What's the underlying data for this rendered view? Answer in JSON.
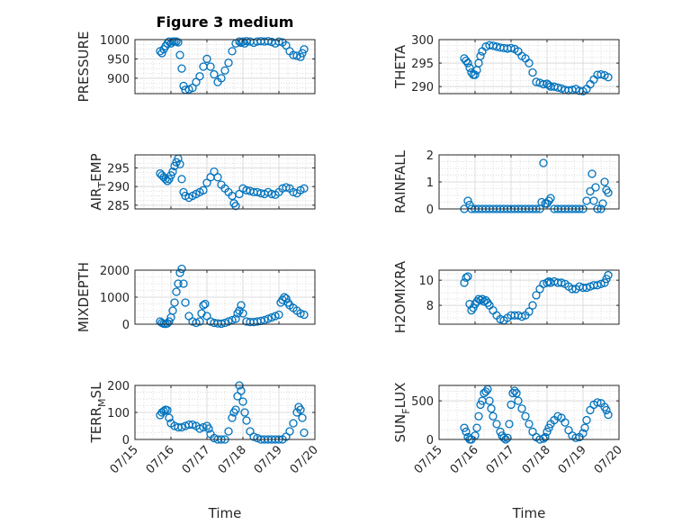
{
  "figure_title": "Figure 3 medium",
  "colors": {
    "marker": "#0072BD",
    "axis": "#262626",
    "grid": "#DCDCDC"
  },
  "chart_data": [
    {
      "type": "scatter",
      "title": "Figure 3 medium",
      "ylabel": "PRESSURE",
      "ylabel_parts": [
        {
          "t": "PRESSURE",
          "s": false
        }
      ],
      "xlabel": "",
      "xlim": [
        0,
        5
      ],
      "ylim": [
        860,
        1000
      ],
      "yticks": [
        900,
        950,
        1000
      ],
      "ytick_labels": [
        "900",
        "950",
        "1000"
      ],
      "xticks": [
        0,
        1,
        2,
        3,
        4,
        5
      ],
      "xtick_labels": [
        "07/15",
        "07/16",
        "07/17",
        "07/18",
        "07/19",
        "07/20"
      ],
      "show_xtick_labels": false,
      "grid": true,
      "points": {
        "x": [
          0.7,
          0.75,
          0.8,
          0.85,
          0.9,
          0.95,
          1.0,
          1.05,
          1.1,
          1.15,
          1.2,
          1.25,
          1.3,
          1.35,
          1.4,
          1.5,
          1.6,
          1.7,
          1.8,
          1.9,
          2.0,
          2.1,
          2.2,
          2.3,
          2.4,
          2.5,
          2.6,
          2.7,
          2.8,
          2.9,
          2.95,
          3.0,
          3.05,
          3.1,
          3.2,
          3.3,
          3.4,
          3.5,
          3.6,
          3.7,
          3.8,
          3.9,
          4.0,
          4.1,
          4.2,
          4.3,
          4.4,
          4.5,
          4.6,
          4.65,
          4.7
        ],
        "y": [
          970,
          965,
          975,
          983,
          990,
          995,
          990,
          995,
          995,
          995,
          993,
          960,
          925,
          880,
          870,
          871,
          875,
          890,
          905,
          930,
          950,
          930,
          910,
          890,
          900,
          920,
          940,
          970,
          990,
          995,
          992,
          995,
          990,
          996,
          995,
          992,
          995,
          996,
          995,
          996,
          994,
          990,
          995,
          993,
          985,
          970,
          960,
          958,
          955,
          965,
          975
        ]
      }
    },
    {
      "type": "scatter",
      "ylabel": "THETA",
      "ylabel_parts": [
        {
          "t": "THETA",
          "s": false
        }
      ],
      "xlabel": "",
      "xlim": [
        0,
        5
      ],
      "ylim": [
        288.5,
        300
      ],
      "yticks": [
        290,
        295,
        300
      ],
      "ytick_labels": [
        "290",
        "295",
        "300"
      ],
      "xticks": [
        0,
        1,
        2,
        3,
        4,
        5
      ],
      "xtick_labels": [
        "07/15",
        "07/16",
        "07/17",
        "07/18",
        "07/19",
        "07/20"
      ],
      "show_xtick_labels": false,
      "grid": true,
      "points": {
        "x": [
          0.7,
          0.75,
          0.8,
          0.85,
          0.9,
          0.95,
          1.0,
          1.05,
          1.1,
          1.15,
          1.2,
          1.3,
          1.4,
          1.5,
          1.6,
          1.7,
          1.8,
          1.9,
          2.0,
          2.1,
          2.2,
          2.3,
          2.4,
          2.5,
          2.6,
          2.7,
          2.8,
          2.9,
          3.0,
          3.05,
          3.1,
          3.2,
          3.3,
          3.4,
          3.5,
          3.6,
          3.7,
          3.8,
          3.9,
          4.0,
          4.1,
          4.2,
          4.3,
          4.4,
          4.5,
          4.6,
          4.7
        ],
        "y": [
          296,
          295.5,
          295,
          294,
          293,
          292.5,
          292.5,
          293.5,
          295,
          296.5,
          297.5,
          298.5,
          298.8,
          298.7,
          298.5,
          298.3,
          298.2,
          298.1,
          298.2,
          298,
          297.5,
          296.5,
          296,
          295,
          293,
          291,
          290.8,
          290.5,
          290.6,
          290.3,
          290,
          290,
          289.8,
          289.6,
          289.3,
          289.2,
          289.3,
          289.5,
          289.1,
          289,
          289.5,
          290.5,
          291.5,
          292.5,
          292.6,
          292.4,
          292
        ]
      }
    },
    {
      "type": "scatter",
      "ylabel": "AIR_TEMP",
      "ylabel_parts": [
        {
          "t": "AIR",
          "s": false
        },
        {
          "t": "T",
          "s": true
        },
        {
          "t": "EMP",
          "s": false
        }
      ],
      "xlabel": "",
      "xlim": [
        0,
        5
      ],
      "ylim": [
        284,
        298.5
      ],
      "yticks": [
        285,
        290,
        295
      ],
      "ytick_labels": [
        "285",
        "290",
        "295"
      ],
      "xticks": [
        0,
        1,
        2,
        3,
        4,
        5
      ],
      "xtick_labels": [
        "07/15",
        "07/16",
        "07/17",
        "07/18",
        "07/19",
        "07/20"
      ],
      "show_xtick_labels": false,
      "grid": true,
      "points": {
        "x": [
          0.7,
          0.75,
          0.8,
          0.85,
          0.9,
          0.95,
          1.0,
          1.05,
          1.1,
          1.15,
          1.2,
          1.25,
          1.3,
          1.35,
          1.4,
          1.5,
          1.6,
          1.7,
          1.8,
          1.9,
          2.0,
          2.1,
          2.2,
          2.3,
          2.4,
          2.5,
          2.6,
          2.7,
          2.75,
          2.8,
          2.9,
          3.0,
          3.1,
          3.2,
          3.3,
          3.4,
          3.5,
          3.6,
          3.7,
          3.8,
          3.9,
          4.0,
          4.1,
          4.2,
          4.3,
          4.4,
          4.5,
          4.6,
          4.7
        ],
        "y": [
          293.5,
          293,
          292.5,
          292,
          291.5,
          292,
          293,
          294,
          295.5,
          296.5,
          297.5,
          296,
          292,
          288.5,
          287.5,
          287,
          287.5,
          288,
          288.5,
          289,
          291,
          292.5,
          294,
          292.5,
          290.5,
          289.5,
          288.5,
          287.5,
          285.5,
          284.8,
          288,
          289.5,
          289,
          288.8,
          288.5,
          288.5,
          288.2,
          288,
          288.5,
          288,
          287.8,
          288.5,
          289.5,
          289.8,
          289.5,
          288.5,
          288.2,
          289,
          289.5
        ]
      }
    },
    {
      "type": "scatter",
      "ylabel": "RAINFALL",
      "ylabel_parts": [
        {
          "t": "RAINFALL",
          "s": false
        }
      ],
      "xlabel": "",
      "xlim": [
        0,
        5
      ],
      "ylim": [
        0,
        2
      ],
      "yticks": [
        0,
        1,
        2
      ],
      "ytick_labels": [
        "0",
        "1",
        "2"
      ],
      "xticks": [
        0,
        1,
        2,
        3,
        4,
        5
      ],
      "xtick_labels": [
        "07/15",
        "07/16",
        "07/17",
        "07/18",
        "07/19",
        "07/20"
      ],
      "show_xtick_labels": false,
      "grid": true,
      "points": {
        "x": [
          0.7,
          0.8,
          0.85,
          0.9,
          1.0,
          1.1,
          1.2,
          1.3,
          1.4,
          1.5,
          1.6,
          1.7,
          1.8,
          1.9,
          2.0,
          2.1,
          2.2,
          2.3,
          2.4,
          2.5,
          2.6,
          2.7,
          2.8,
          2.85,
          2.9,
          2.95,
          3.0,
          3.05,
          3.1,
          3.2,
          3.3,
          3.4,
          3.5,
          3.6,
          3.7,
          3.8,
          3.9,
          4.0,
          4.1,
          4.2,
          4.25,
          4.3,
          4.35,
          4.4,
          4.5,
          4.55,
          4.6,
          4.65,
          4.7
        ],
        "y": [
          0,
          0.3,
          0.15,
          0,
          0,
          0,
          0,
          0,
          0,
          0,
          0,
          0,
          0,
          0,
          0,
          0,
          0,
          0,
          0,
          0,
          0,
          0,
          0,
          0.25,
          1.7,
          0.2,
          0.2,
          0.3,
          0.4,
          0,
          0,
          0,
          0,
          0,
          0,
          0,
          0,
          0,
          0.3,
          0.65,
          1.3,
          0.3,
          0.8,
          0,
          0,
          0.2,
          1.0,
          0.7,
          0.6
        ]
      }
    },
    {
      "type": "scatter",
      "ylabel": "MIXDEPTH",
      "ylabel_parts": [
        {
          "t": "MIXDEPTH",
          "s": false
        }
      ],
      "xlabel": "",
      "xlim": [
        0,
        5
      ],
      "ylim": [
        0,
        2000
      ],
      "yticks": [
        0,
        1000,
        2000
      ],
      "ytick_labels": [
        "0",
        "1000",
        "2000"
      ],
      "xticks": [
        0,
        1,
        2,
        3,
        4,
        5
      ],
      "xtick_labels": [
        "07/15",
        "07/16",
        "07/17",
        "07/18",
        "07/19",
        "07/20"
      ],
      "show_xtick_labels": false,
      "grid": true,
      "points": {
        "x": [
          0.7,
          0.75,
          0.8,
          0.85,
          0.9,
          0.95,
          1.0,
          1.05,
          1.1,
          1.15,
          1.2,
          1.25,
          1.3,
          1.35,
          1.4,
          1.5,
          1.6,
          1.7,
          1.8,
          1.85,
          1.9,
          1.95,
          2.0,
          2.1,
          2.2,
          2.3,
          2.4,
          2.5,
          2.6,
          2.7,
          2.8,
          2.85,
          2.9,
          2.95,
          3.0,
          3.1,
          3.2,
          3.3,
          3.4,
          3.5,
          3.6,
          3.7,
          3.8,
          3.9,
          4.0,
          4.05,
          4.1,
          4.15,
          4.2,
          4.25,
          4.3,
          4.4,
          4.5,
          4.6,
          4.7
        ],
        "y": [
          100,
          50,
          20,
          10,
          30,
          100,
          250,
          500,
          800,
          1200,
          1500,
          1900,
          2050,
          1500,
          800,
          300,
          100,
          50,
          100,
          400,
          700,
          750,
          300,
          100,
          50,
          30,
          20,
          50,
          100,
          150,
          200,
          400,
          500,
          700,
          400,
          100,
          80,
          80,
          100,
          120,
          150,
          200,
          250,
          300,
          350,
          800,
          900,
          1000,
          950,
          800,
          700,
          600,
          500,
          400,
          350
        ]
      }
    },
    {
      "type": "scatter",
      "ylabel": "H2OMIXRA",
      "ylabel_parts": [
        {
          "t": "H2OMIXRA",
          "s": false
        }
      ],
      "xlabel": "",
      "xlim": [
        0,
        5
      ],
      "ylim": [
        6.5,
        10.8
      ],
      "yticks": [
        8,
        10
      ],
      "ytick_labels": [
        "8",
        "10"
      ],
      "xticks": [
        0,
        1,
        2,
        3,
        4,
        5
      ],
      "xtick_labels": [
        "07/15",
        "07/16",
        "07/17",
        "07/18",
        "07/19",
        "07/20"
      ],
      "show_xtick_labels": false,
      "grid": true,
      "points": {
        "x": [
          0.7,
          0.75,
          0.8,
          0.85,
          0.9,
          0.95,
          1.0,
          1.05,
          1.1,
          1.15,
          1.2,
          1.25,
          1.3,
          1.35,
          1.4,
          1.5,
          1.6,
          1.7,
          1.8,
          1.9,
          2.0,
          2.1,
          2.2,
          2.3,
          2.4,
          2.5,
          2.6,
          2.7,
          2.8,
          2.9,
          3.0,
          3.05,
          3.1,
          3.2,
          3.3,
          3.4,
          3.5,
          3.6,
          3.7,
          3.8,
          3.9,
          4.0,
          4.1,
          4.2,
          4.3,
          4.4,
          4.5,
          4.6,
          4.65,
          4.7
        ],
        "y": [
          9.8,
          10.2,
          10.3,
          8.1,
          7.6,
          7.8,
          8.1,
          8.3,
          8.5,
          8.4,
          8.5,
          8.3,
          8.4,
          8.2,
          8.0,
          7.6,
          7.2,
          6.9,
          6.8,
          7.0,
          7.2,
          7.2,
          7.2,
          7.1,
          7.2,
          7.5,
          8.0,
          8.8,
          9.3,
          9.7,
          9.8,
          9.9,
          9.8,
          9.9,
          9.8,
          9.8,
          9.7,
          9.5,
          9.3,
          9.3,
          9.5,
          9.4,
          9.4,
          9.5,
          9.6,
          9.6,
          9.7,
          9.8,
          10.1,
          10.4
        ]
      }
    },
    {
      "type": "scatter",
      "ylabel": "TERR_MSL",
      "ylabel_parts": [
        {
          "t": "TERR",
          "s": false
        },
        {
          "t": "M",
          "s": true
        },
        {
          "t": "SL",
          "s": false
        }
      ],
      "xlabel": "Time",
      "xlim": [
        0,
        5
      ],
      "ylim": [
        0,
        200
      ],
      "yticks": [
        0,
        100,
        200
      ],
      "ytick_labels": [
        "0",
        "100",
        "200"
      ],
      "xticks": [
        0,
        1,
        2,
        3,
        4,
        5
      ],
      "xtick_labels": [
        "07/15",
        "07/16",
        "07/17",
        "07/18",
        "07/19",
        "07/20"
      ],
      "show_xtick_labels": true,
      "grid": true,
      "points": {
        "x": [
          0.7,
          0.75,
          0.8,
          0.85,
          0.9,
          0.95,
          1.0,
          1.1,
          1.2,
          1.3,
          1.4,
          1.5,
          1.6,
          1.7,
          1.8,
          1.9,
          2.0,
          2.05,
          2.1,
          2.2,
          2.3,
          2.4,
          2.5,
          2.6,
          2.7,
          2.75,
          2.8,
          2.85,
          2.9,
          2.95,
          3.0,
          3.05,
          3.1,
          3.2,
          3.3,
          3.4,
          3.5,
          3.6,
          3.7,
          3.8,
          3.9,
          4.0,
          4.1,
          4.2,
          4.3,
          4.4,
          4.5,
          4.55,
          4.6,
          4.65,
          4.7
        ],
        "y": [
          90,
          100,
          105,
          110,
          108,
          80,
          60,
          50,
          45,
          45,
          50,
          55,
          55,
          50,
          40,
          45,
          50,
          40,
          20,
          5,
          0,
          0,
          0,
          30,
          80,
          100,
          110,
          160,
          200,
          180,
          140,
          100,
          70,
          30,
          10,
          5,
          0,
          0,
          0,
          0,
          0,
          0,
          0,
          10,
          30,
          60,
          100,
          120,
          110,
          80,
          25
        ]
      }
    },
    {
      "type": "scatter",
      "ylabel": "SUN_FLUX",
      "ylabel_parts": [
        {
          "t": "SUN",
          "s": false
        },
        {
          "t": "F",
          "s": true
        },
        {
          "t": "LUX",
          "s": false
        }
      ],
      "xlabel": "Time",
      "xlim": [
        0,
        5
      ],
      "ylim": [
        0,
        700
      ],
      "yticks": [
        0,
        500
      ],
      "ytick_labels": [
        "0",
        "500"
      ],
      "xticks": [
        0,
        1,
        2,
        3,
        4,
        5
      ],
      "xtick_labels": [
        "07/15",
        "07/16",
        "07/17",
        "07/18",
        "07/19",
        "07/20"
      ],
      "show_xtick_labels": true,
      "grid": true,
      "points": {
        "x": [
          0.7,
          0.75,
          0.8,
          0.85,
          0.9,
          1.0,
          1.05,
          1.1,
          1.15,
          1.2,
          1.25,
          1.3,
          1.35,
          1.4,
          1.45,
          1.5,
          1.6,
          1.7,
          1.75,
          1.8,
          1.85,
          1.9,
          1.95,
          2.0,
          2.05,
          2.1,
          2.15,
          2.2,
          2.3,
          2.4,
          2.5,
          2.6,
          2.7,
          2.8,
          2.9,
          2.95,
          3.0,
          3.05,
          3.1,
          3.2,
          3.3,
          3.4,
          3.5,
          3.6,
          3.7,
          3.8,
          3.9,
          4.0,
          4.05,
          4.1,
          4.2,
          4.3,
          4.4,
          4.5,
          4.6,
          4.65,
          4.7
        ],
        "y": [
          150,
          100,
          30,
          0,
          0,
          50,
          150,
          300,
          450,
          500,
          600,
          620,
          650,
          500,
          400,
          300,
          200,
          100,
          50,
          20,
          0,
          20,
          200,
          450,
          600,
          630,
          600,
          500,
          400,
          300,
          200,
          100,
          30,
          0,
          10,
          30,
          100,
          150,
          200,
          250,
          300,
          280,
          220,
          120,
          50,
          20,
          30,
          80,
          150,
          250,
          380,
          450,
          480,
          470,
          420,
          380,
          320
        ]
      }
    }
  ]
}
